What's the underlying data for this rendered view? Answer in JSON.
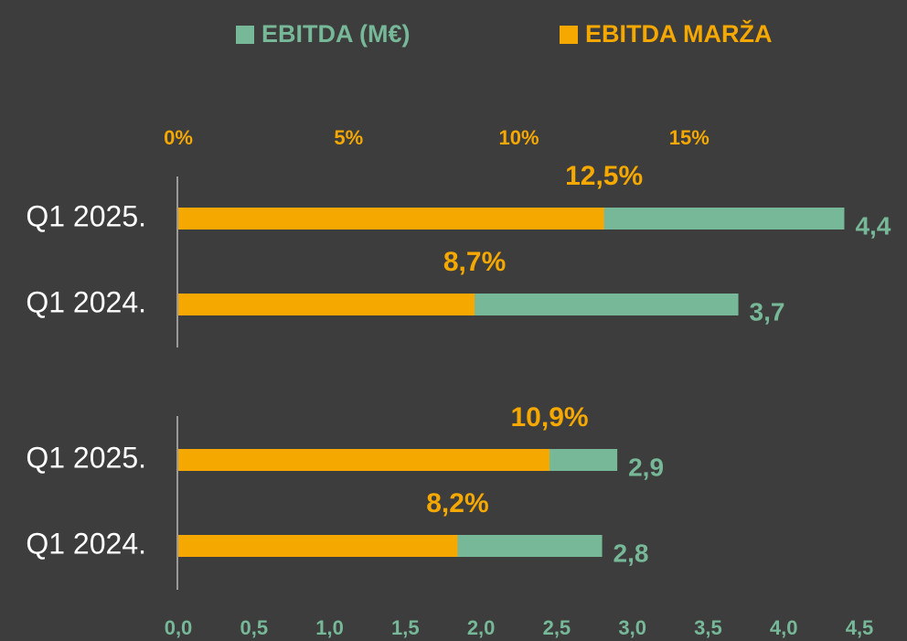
{
  "chart_data": {
    "type": "bar",
    "orientation": "horizontal",
    "categories": [
      "Q1 2025.",
      "Q1 2024.",
      "Q1 2025.",
      "Q1 2024."
    ],
    "series": [
      {
        "name": "EBITDA (M€)",
        "color": "#76b898",
        "axis": "x",
        "values": [
          4.4,
          3.7,
          2.9,
          2.8
        ],
        "value_labels": [
          "4,4",
          "3,7",
          "2,9",
          "2,8"
        ]
      },
      {
        "name": "EBITDA MARŽA",
        "color": "#f5a800",
        "axis": "x2",
        "values": [
          12.5,
          8.7,
          10.9,
          8.2
        ],
        "value_labels": [
          "12,5%",
          "8,7%",
          "10,9%",
          "8,2%"
        ]
      }
    ],
    "xlim": [
      0,
      4.5
    ],
    "xticks": [
      {
        "value": 0,
        "label": "0,0"
      },
      {
        "value": 0.5,
        "label": "0,5"
      },
      {
        "value": 1,
        "label": "1,0"
      },
      {
        "value": 1.5,
        "label": "1,5"
      },
      {
        "value": 2,
        "label": "2,0"
      },
      {
        "value": 2.5,
        "label": "2,5"
      },
      {
        "value": 3,
        "label": "3,0"
      },
      {
        "value": 3.5,
        "label": "3,5"
      },
      {
        "value": 4,
        "label": "4,0"
      },
      {
        "value": 4.5,
        "label": "4,5"
      }
    ],
    "x2lim": [
      0,
      20
    ],
    "x2ticks": [
      {
        "value": 0,
        "label": "0%"
      },
      {
        "value": 5,
        "label": "5%"
      },
      {
        "value": 10,
        "label": "10%"
      },
      {
        "value": 15,
        "label": "15%"
      }
    ],
    "legend": "top"
  }
}
